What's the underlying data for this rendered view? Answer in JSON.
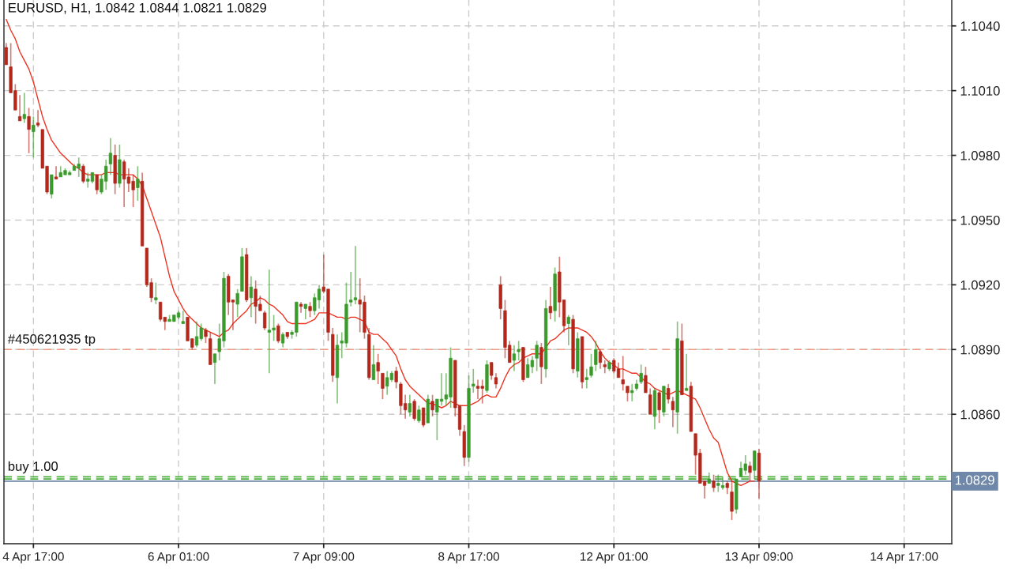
{
  "chart_data": {
    "type": "candlestick",
    "title": "EURUSD, H1, 1.0842 1.0844 1.0821 1.0829",
    "categories": [
      null,
      null,
      null,
      null,
      null,
      null,
      "4 Apr 17:00",
      null,
      null,
      null,
      null,
      null,
      null,
      null,
      null,
      null,
      null,
      null,
      null,
      null,
      null,
      null,
      null,
      null,
      null,
      null,
      null,
      null,
      null,
      null,
      null,
      null,
      null,
      null,
      null,
      null,
      null,
      null,
      "6 Apr 01:00",
      null,
      null,
      null,
      null,
      null,
      null,
      null,
      null,
      null,
      null,
      null,
      null,
      null,
      null,
      null,
      null,
      null,
      null,
      null,
      null,
      null,
      null,
      null,
      null,
      null,
      null,
      null,
      null,
      null,
      null,
      null,
      "7 Apr 09:00",
      null,
      null,
      null,
      null,
      null,
      null,
      null,
      null,
      null,
      null,
      null,
      null,
      null,
      null,
      null,
      null,
      null,
      null,
      null,
      null,
      null,
      null,
      null,
      null,
      null,
      null,
      null,
      null,
      null,
      null,
      null,
      "8 Apr 17:00",
      null,
      null,
      null,
      null,
      null,
      null,
      null,
      null,
      null,
      null,
      null,
      null,
      null,
      null,
      null,
      null,
      null,
      null,
      null,
      null,
      null,
      null,
      null,
      null,
      null,
      null,
      null,
      null,
      null,
      null,
      null,
      "12 Apr 01:00",
      null,
      null,
      null,
      null,
      null,
      null,
      null,
      null,
      null,
      null,
      null,
      null,
      null,
      null,
      null,
      null,
      null,
      null,
      null,
      null,
      null,
      null,
      null,
      null,
      null,
      null,
      null,
      null,
      null,
      null,
      null,
      "13 Apr 09:00",
      null,
      null,
      null,
      null,
      null,
      null,
      null,
      null,
      null,
      null,
      null,
      null,
      null,
      null,
      null,
      null,
      null,
      null,
      null,
      null,
      null,
      null,
      null,
      null,
      null,
      null,
      null,
      null,
      null,
      null,
      null,
      "14 Apr 17:00",
      null,
      null,
      null,
      null,
      null,
      null,
      null,
      null,
      null,
      null
    ],
    "ylim": [
      1.08,
      1.1052
    ],
    "yticks": [
      {
        "value": 1.086,
        "label": "1.0860"
      },
      {
        "value": 1.089,
        "label": "1.0890"
      },
      {
        "value": 1.092,
        "label": "1.0920"
      },
      {
        "value": 1.095,
        "label": "1.0950"
      },
      {
        "value": 1.098,
        "label": "1.0980"
      },
      {
        "value": 1.101,
        "label": "1.1010"
      },
      {
        "value": 1.104,
        "label": "1.1040"
      }
    ],
    "grid": true,
    "series": [
      {
        "type": "line",
        "color": "#ee3322",
        "values": [
          1.1043,
          1.1038,
          1.1034,
          1.1028,
          1.1024,
          1.102,
          1.1014,
          1.1006,
          1.0998,
          1.0992,
          1.0987,
          1.0984,
          1.0981,
          1.0979,
          1.0977,
          1.0975,
          1.0974,
          1.0972,
          1.0971,
          1.0971,
          1.0971,
          1.0971,
          1.0972,
          1.0972,
          1.0972,
          1.0971,
          1.0971,
          1.0971,
          1.0971,
          1.0969,
          1.0966,
          1.096,
          1.0954,
          1.0948,
          1.0942,
          1.0933,
          1.0924,
          1.0917,
          1.0913,
          1.0909,
          1.0906,
          1.0904,
          1.0902,
          1.09,
          1.0899,
          1.0898,
          1.0897,
          1.0896,
          1.0898,
          1.0899,
          1.0902,
          1.0904,
          1.0906,
          1.0908,
          1.0911,
          1.0912,
          1.0914,
          1.0913,
          1.0911,
          1.091,
          1.0908,
          1.0906,
          1.0903,
          1.0902,
          1.0902,
          1.0902,
          1.0902,
          1.0903,
          1.0904,
          1.0907,
          1.0907,
          1.0907,
          1.0906,
          1.0905,
          1.0905,
          1.0904,
          1.0905,
          1.0905,
          1.0904,
          1.0903,
          1.0898,
          1.0897,
          1.0897,
          1.0895,
          1.0893,
          1.089,
          1.0887,
          1.0881,
          1.0876,
          1.0873,
          1.0871,
          1.0869,
          1.0867,
          1.0865,
          1.0865,
          1.0864,
          1.0863,
          1.0864,
          1.0866,
          1.0865,
          1.0864,
          1.0864,
          1.0864,
          1.0865,
          1.0866,
          1.0868,
          1.0869,
          1.0868,
          1.0868,
          1.0872,
          1.0877,
          1.0881,
          1.0883,
          1.0884,
          1.0886,
          1.0887,
          1.0888,
          1.0888,
          1.0888,
          1.0891,
          1.0894,
          1.0895,
          1.0897,
          1.0899,
          1.09,
          1.09,
          1.09,
          1.0899,
          1.0898,
          1.0896,
          1.0893,
          1.0889,
          1.0886,
          1.0884,
          1.0883,
          1.0881,
          1.0881,
          1.088,
          1.0879,
          1.0879,
          1.0877,
          1.0875,
          1.0874,
          1.0872,
          1.0871,
          1.087,
          1.0869,
          1.087,
          1.0871,
          1.087,
          1.0869,
          1.0868,
          1.0867,
          1.0863,
          1.0858,
          1.0853,
          1.0849,
          1.0847,
          1.084,
          1.0833,
          1.0829,
          1.0828,
          1.0827,
          1.0828,
          1.0829,
          1.0829,
          null,
          null,
          null,
          null,
          null,
          null,
          null,
          null,
          null,
          null,
          null,
          null,
          null,
          null,
          null,
          null,
          null,
          null,
          null,
          null,
          null,
          null,
          null,
          null,
          null,
          null,
          null,
          null,
          null,
          null,
          null,
          null,
          null,
          null,
          null,
          null,
          null,
          null,
          null,
          null,
          null,
          null,
          null
        ]
      },
      {
        "ohlc": [
          [
            1.103,
            1.1032,
            1.1022,
            1.1022
          ],
          [
            1.1021,
            1.1032,
            1.1009,
            1.1009
          ],
          [
            1.101,
            1.1013,
            1.1001,
            1.1001
          ],
          [
            1.0998,
            1.1008,
            1.0996,
            1.0996
          ],
          [
            1.0997,
            1.1009,
            1.0995,
            1.0999
          ],
          [
            1.0998,
            1.1002,
            1.0981,
            1.0992
          ],
          [
            1.0991,
            1.0998,
            1.0979,
            1.0994
          ],
          [
            1.0995,
            1.1001,
            1.0993,
            1.0994
          ],
          [
            1.0992,
            1.0992,
            1.0974,
            1.0974
          ],
          [
            1.0975,
            1.0975,
            1.0962,
            1.0963
          ],
          [
            1.0962,
            1.0971,
            1.096,
            1.0971
          ],
          [
            1.097,
            1.0975,
            1.0969,
            1.0969
          ],
          [
            1.097,
            1.0975,
            1.097,
            1.0972
          ],
          [
            1.0971,
            1.0974,
            1.0971,
            1.0973
          ],
          [
            1.0971,
            1.0973,
            1.0971,
            1.0972
          ],
          [
            1.0973,
            1.0976,
            1.0973,
            1.0975
          ],
          [
            1.0974,
            1.0979,
            1.097,
            1.0976
          ],
          [
            1.0975,
            1.0976,
            1.0967,
            1.0968
          ],
          [
            1.0968,
            1.0972,
            1.0965,
            1.0969
          ],
          [
            1.0968,
            1.0972,
            1.0967,
            1.0972
          ],
          [
            1.0971,
            1.0971,
            1.0962,
            1.0964
          ],
          [
            1.0963,
            1.0971,
            1.0962,
            1.0969
          ],
          [
            1.0968,
            1.0978,
            1.0964,
            1.0975
          ],
          [
            1.0976,
            1.0988,
            1.0971,
            1.0981
          ],
          [
            1.098,
            1.0985,
            1.0962,
            1.0967
          ],
          [
            1.0967,
            1.0985,
            1.0965,
            1.0978
          ],
          [
            1.0977,
            1.0978,
            1.0956,
            1.0969
          ],
          [
            1.097,
            1.0974,
            1.0963,
            1.0967
          ],
          [
            1.0968,
            1.0971,
            1.0956,
            1.0964
          ],
          [
            1.0965,
            1.0975,
            1.0959,
            1.0969
          ],
          [
            1.0968,
            1.0972,
            1.0938,
            1.0938
          ],
          [
            1.0937,
            1.0937,
            1.0919,
            1.092
          ],
          [
            1.0921,
            1.0923,
            1.0912,
            1.0914
          ],
          [
            1.0913,
            1.0921,
            1.0911,
            1.0914
          ],
          [
            1.0912,
            1.0912,
            1.0903,
            1.0904
          ],
          [
            1.0905,
            1.0905,
            1.0899,
            1.0903
          ],
          [
            1.0903,
            1.0906,
            1.0903,
            1.0904
          ],
          [
            1.0903,
            1.0906,
            1.0903,
            1.0906
          ],
          [
            1.0905,
            1.0908,
            1.0904,
            1.0907
          ],
          [
            1.0902,
            1.0908,
            1.0902,
            1.0903
          ],
          [
            1.0905,
            1.0905,
            1.0894,
            1.0894
          ],
          [
            1.0895,
            1.0895,
            1.089,
            1.0891
          ],
          [
            1.0892,
            1.0903,
            1.0891,
            1.0896
          ],
          [
            1.0895,
            1.0902,
            1.0894,
            1.09
          ],
          [
            1.0899,
            1.09,
            1.0893,
            1.0896
          ],
          [
            1.0895,
            1.0898,
            1.0883,
            1.0883
          ],
          [
            1.0884,
            1.0888,
            1.0874,
            1.0888
          ],
          [
            1.0889,
            1.0902,
            1.0885,
            1.0895
          ],
          [
            1.0894,
            1.0926,
            1.0891,
            1.0923
          ],
          [
            1.0924,
            1.0925,
            1.0906,
            1.0912
          ],
          [
            1.0913,
            1.0913,
            1.0899,
            1.0912
          ],
          [
            1.0911,
            1.0918,
            1.0905,
            1.0916
          ],
          [
            1.0917,
            1.0937,
            1.0917,
            1.0933
          ],
          [
            1.0934,
            1.0937,
            1.0912,
            1.0913
          ],
          [
            1.0914,
            1.0924,
            1.0905,
            1.0919
          ],
          [
            1.0918,
            1.0922,
            1.0902,
            1.091
          ],
          [
            1.0911,
            1.0915,
            1.0908,
            1.0908
          ],
          [
            1.0907,
            1.0908,
            1.0899,
            1.09
          ],
          [
            1.0898,
            1.0927,
            1.0879,
            1.0899
          ],
          [
            1.0899,
            1.0906,
            1.0894,
            1.09
          ],
          [
            1.0901,
            1.0902,
            1.0893,
            1.0894
          ],
          [
            1.0893,
            1.0898,
            1.0891,
            1.0897
          ],
          [
            1.0898,
            1.0898,
            1.0895,
            1.0896
          ],
          [
            1.0897,
            1.0899,
            1.0895,
            1.0898
          ],
          [
            1.0898,
            1.0912,
            1.0896,
            1.0912
          ],
          [
            1.0911,
            1.0912,
            1.0907,
            1.091
          ],
          [
            1.0909,
            1.0911,
            1.0904,
            1.0911
          ],
          [
            1.091,
            1.0912,
            1.0905,
            1.0908
          ],
          [
            1.0908,
            1.0916,
            1.0906,
            1.0914
          ],
          [
            1.0913,
            1.092,
            1.0909,
            1.0918
          ],
          [
            1.0919,
            1.0934,
            1.0916,
            1.0917
          ],
          [
            1.0918,
            1.0918,
            1.0894,
            1.0898
          ],
          [
            1.0897,
            1.09,
            1.0875,
            1.0878
          ],
          [
            1.0877,
            1.0897,
            1.0865,
            1.0892
          ],
          [
            1.0893,
            1.0898,
            1.0886,
            1.0894
          ],
          [
            1.0893,
            1.0921,
            1.0891,
            1.0911
          ],
          [
            1.0912,
            1.0926,
            1.091,
            1.0913
          ],
          [
            1.0913,
            1.0938,
            1.0911,
            1.0914
          ],
          [
            1.0913,
            1.0923,
            1.0898,
            1.0911
          ],
          [
            1.0912,
            1.0915,
            1.0895,
            1.0898
          ],
          [
            1.0897,
            1.09,
            1.0876,
            1.0877
          ],
          [
            1.0876,
            1.0892,
            1.0876,
            1.0883
          ],
          [
            1.0884,
            1.0888,
            1.0874,
            1.088
          ],
          [
            1.0879,
            1.0879,
            1.0867,
            1.0872
          ],
          [
            1.0873,
            1.088,
            1.0869,
            1.0877
          ],
          [
            1.0876,
            1.088,
            1.0875,
            1.0879
          ],
          [
            1.088,
            1.0882,
            1.0872,
            1.0875
          ],
          [
            1.0874,
            1.0875,
            1.086,
            1.0864
          ],
          [
            1.0865,
            1.0869,
            1.0858,
            1.0862
          ],
          [
            1.0861,
            1.0869,
            1.0859,
            1.0865
          ],
          [
            1.0866,
            1.0867,
            1.0857,
            1.0858
          ],
          [
            1.0857,
            1.0864,
            1.0856,
            1.0862
          ],
          [
            1.0863,
            1.0863,
            1.0854,
            1.0855
          ],
          [
            1.0856,
            1.0869,
            1.0856,
            1.0867
          ],
          [
            1.0866,
            1.0869,
            1.0859,
            1.0862
          ],
          [
            1.0861,
            1.0867,
            1.0848,
            1.0867
          ],
          [
            1.0866,
            1.0879,
            1.0864,
            1.0867
          ],
          [
            1.0867,
            1.0879,
            1.0864,
            1.0869
          ],
          [
            1.0868,
            1.0891,
            1.0863,
            1.0886
          ],
          [
            1.0885,
            1.0885,
            1.0859,
            1.0863
          ],
          [
            1.0864,
            1.0864,
            1.085,
            1.0853
          ],
          [
            1.0852,
            1.0855,
            1.0836,
            1.084
          ],
          [
            1.084,
            1.0878,
            1.0838,
            1.0872
          ],
          [
            1.0873,
            1.0881,
            1.087,
            1.0874
          ],
          [
            1.0873,
            1.0876,
            1.0867,
            1.0872
          ],
          [
            1.0873,
            1.0876,
            1.0865,
            1.0872
          ],
          [
            1.0871,
            1.0885,
            1.087,
            1.0883
          ],
          [
            1.0884,
            1.0884,
            1.0876,
            1.0878
          ],
          [
            1.0877,
            1.0879,
            1.0872,
            1.0874
          ],
          [
            1.092,
            1.0924,
            1.0904,
            1.0909
          ],
          [
            1.0908,
            1.0913,
            1.0886,
            1.0891
          ],
          [
            1.0892,
            1.0894,
            1.0884,
            1.0884
          ],
          [
            1.0885,
            1.0892,
            1.088,
            1.0888
          ],
          [
            1.0889,
            1.0894,
            1.0885,
            1.089
          ],
          [
            1.0891,
            1.0891,
            1.0875,
            1.0876
          ],
          [
            1.0877,
            1.0886,
            1.0877,
            1.0883
          ],
          [
            1.0882,
            1.0887,
            1.0879,
            1.0885
          ],
          [
            1.0886,
            1.0894,
            1.088,
            1.0892
          ],
          [
            1.0891,
            1.0893,
            1.0874,
            1.0882
          ],
          [
            1.0881,
            1.0913,
            1.0877,
            1.0909
          ],
          [
            1.091,
            1.0919,
            1.0904,
            1.0907
          ],
          [
            1.0908,
            1.0928,
            1.0903,
            1.0925
          ],
          [
            1.0926,
            1.0933,
            1.0905,
            1.0912
          ],
          [
            1.0913,
            1.0913,
            1.0898,
            1.0901
          ],
          [
            1.0902,
            1.0906,
            1.0892,
            1.0905
          ],
          [
            1.0904,
            1.0906,
            1.0879,
            1.0881
          ],
          [
            1.088,
            1.0898,
            1.0877,
            1.0895
          ],
          [
            1.0896,
            1.0896,
            1.0872,
            1.0875
          ],
          [
            1.0876,
            1.0881,
            1.0872,
            1.0877
          ],
          [
            1.0878,
            1.0888,
            1.0877,
            1.0882
          ],
          [
            1.0883,
            1.0894,
            1.088,
            1.089
          ],
          [
            1.0889,
            1.089,
            1.0881,
            1.0884
          ],
          [
            1.0883,
            1.0885,
            1.0879,
            1.0882
          ],
          [
            1.0881,
            1.0885,
            1.088,
            1.0884
          ],
          [
            1.0885,
            1.0886,
            1.0879,
            1.088
          ],
          [
            1.0881,
            1.0884,
            1.0877,
            1.0877
          ],
          [
            1.0876,
            1.0887,
            1.0871,
            1.0874
          ],
          [
            1.0873,
            1.0873,
            1.0866,
            1.087
          ],
          [
            1.087,
            1.0874,
            1.0866,
            1.0871
          ],
          [
            1.0872,
            1.0876,
            1.0871,
            1.0874
          ],
          [
            1.0875,
            1.0883,
            1.0874,
            1.0879
          ],
          [
            1.0878,
            1.0882,
            1.087,
            1.087
          ],
          [
            1.0869,
            1.0872,
            1.086,
            1.086
          ],
          [
            1.0859,
            1.0872,
            1.0853,
            1.0871
          ],
          [
            1.087,
            1.0871,
            1.0856,
            1.0862
          ],
          [
            1.0861,
            1.0873,
            1.0859,
            1.0873
          ],
          [
            1.0872,
            1.0874,
            1.0865,
            1.0867
          ],
          [
            1.0866,
            1.0868,
            1.0854,
            1.0862
          ],
          [
            1.0861,
            1.0903,
            1.0851,
            1.0895
          ],
          [
            1.0894,
            1.0902,
            1.0869,
            1.0869
          ],
          [
            1.0871,
            1.0888,
            1.0871,
            1.0872
          ],
          [
            1.0873,
            1.0875,
            1.0852,
            1.0852
          ],
          [
            1.0851,
            1.0851,
            1.0832,
            1.0841
          ],
          [
            1.0842,
            1.0844,
            1.0828,
            1.0828
          ],
          [
            1.0829,
            1.0829,
            1.0821,
            1.0827
          ],
          [
            1.0828,
            1.0833,
            1.0828,
            1.083
          ],
          [
            1.0829,
            1.0832,
            1.0824,
            1.0826
          ],
          [
            1.0827,
            1.0832,
            1.0824,
            1.0828
          ],
          [
            1.0826,
            1.0831,
            1.0825,
            1.0827
          ],
          [
            1.0828,
            1.0829,
            1.0823,
            1.0826
          ],
          [
            1.0824,
            1.0829,
            1.0811,
            1.0815
          ],
          [
            1.0816,
            1.083,
            1.0814,
            1.083
          ],
          [
            1.0831,
            1.0838,
            1.0831,
            1.0835
          ],
          [
            1.0834,
            1.0841,
            1.0832,
            1.0837
          ],
          [
            1.0836,
            1.0838,
            1.0829,
            1.0833
          ],
          [
            1.0834,
            1.0843,
            1.083,
            1.0843
          ],
          [
            1.0842,
            1.0844,
            1.0821,
            1.0829
          ],
          null,
          null,
          null,
          null,
          null,
          null,
          null,
          null,
          null,
          null,
          null,
          null,
          null,
          null,
          null,
          null,
          null,
          null,
          null,
          null,
          null,
          null,
          null,
          null,
          null,
          null,
          null,
          null,
          null,
          null,
          null,
          null,
          null,
          null,
          null,
          null,
          null,
          null,
          null,
          null,
          null,
          null
        ],
        "colors": [
          "#b3281c",
          "#b3281c",
          "#b3281c",
          "#b3281c",
          "#3a9a2b",
          "#b3281c",
          "#3a9a2b",
          "#b3281c",
          "#b3281c",
          "#b3281c",
          "#3a9a2b",
          "#b3281c",
          "#3a9a2b",
          "#3a9a2b",
          "#3a9a2b",
          "#3a9a2b",
          "#3a9a2b",
          "#b3281c",
          "#3a9a2b",
          "#3a9a2b",
          "#b3281c",
          "#3a9a2b",
          "#3a9a2b",
          "#3a9a2b",
          "#b3281c",
          "#3a9a2b",
          "#b3281c",
          "#b3281c",
          "#b3281c",
          "#3a9a2b",
          "#b3281c",
          "#b3281c",
          "#b3281c",
          "#3a9a2b",
          "#b3281c",
          "#b3281c",
          "#3a9a2b",
          "#3a9a2b",
          "#3a9a2b",
          "#3a9a2b",
          "#b3281c",
          "#b3281c",
          "#3a9a2b",
          "#3a9a2b",
          "#b3281c",
          "#b3281c",
          "#3a9a2b",
          "#3a9a2b",
          "#3a9a2b",
          "#b3281c",
          "#b3281c",
          "#3a9a2b",
          "#3a9a2b",
          "#b3281c",
          "#3a9a2b",
          "#b3281c",
          "#b3281c",
          "#b3281c",
          "#3a9a2b",
          "#3a9a2b",
          "#b3281c",
          "#3a9a2b",
          "#b3281c",
          "#3a9a2b",
          "#3a9a2b",
          "#b3281c",
          "#3a9a2b",
          "#b3281c",
          "#3a9a2b",
          "#3a9a2b",
          "#b3281c",
          "#b3281c",
          "#b3281c",
          "#3a9a2b",
          "#3a9a2b",
          "#3a9a2b",
          "#3a9a2b",
          "#3a9a2b",
          "#b3281c",
          "#b3281c",
          "#b3281c",
          "#3a9a2b",
          "#b3281c",
          "#b3281c",
          "#3a9a2b",
          "#3a9a2b",
          "#b3281c",
          "#b3281c",
          "#b3281c",
          "#3a9a2b",
          "#b3281c",
          "#3a9a2b",
          "#b3281c",
          "#3a9a2b",
          "#b3281c",
          "#3a9a2b",
          "#3a9a2b",
          "#3a9a2b",
          "#3a9a2b",
          "#b3281c",
          "#b3281c",
          "#b3281c",
          "#3a9a2b",
          "#3a9a2b",
          "#b3281c",
          "#b3281c",
          "#3a9a2b",
          "#b3281c",
          "#b3281c",
          "#b3281c",
          "#b3281c",
          "#b3281c",
          "#3a9a2b",
          "#3a9a2b",
          "#b3281c",
          "#3a9a2b",
          "#3a9a2b",
          "#3a9a2b",
          "#b3281c",
          "#3a9a2b",
          "#b3281c",
          "#3a9a2b",
          "#b3281c",
          "#b3281c",
          "#3a9a2b",
          "#b3281c",
          "#3a9a2b",
          "#b3281c",
          "#3a9a2b",
          "#3a9a2b",
          "#3a9a2b",
          "#b3281c",
          "#b3281c",
          "#3a9a2b",
          "#b3281c",
          "#b3281c",
          "#b3281c",
          "#b3281c",
          "#3a9a2b",
          "#3a9a2b",
          "#3a9a2b",
          "#b3281c",
          "#b3281c",
          "#3a9a2b",
          "#b3281c",
          "#3a9a2b",
          "#b3281c",
          "#b3281c",
          "#3a9a2b",
          "#b3281c",
          "#3a9a2b",
          "#b3281c",
          "#b3281c",
          "#b3281c",
          "#b3281c",
          "#3a9a2b",
          "#b3281c",
          "#3a9a2b",
          "#3a9a2b",
          "#b3281c",
          "#b3281c",
          "#3a9a2b",
          "#3a9a2b",
          "#3a9a2b",
          "#b3281c",
          "#3a9a2b",
          "#b3281c",
          null,
          null,
          null,
          null,
          null,
          null,
          null,
          null,
          null,
          null,
          null,
          null,
          null,
          null,
          null,
          null,
          null,
          null,
          null,
          null,
          null,
          null,
          null,
          null,
          null,
          null,
          null,
          null,
          null,
          null,
          null,
          null,
          null,
          null,
          null,
          null,
          null,
          null,
          null,
          null,
          null,
          null
        ]
      }
    ],
    "ref_lines": [
      {
        "axis": "y",
        "value": 1.089,
        "label": "#450621935 tp",
        "color": "#f09a84",
        "line_style": "dashed"
      },
      {
        "axis": "y",
        "value": 1.0831,
        "label": "buy 1.00",
        "color": "#4caf3c",
        "line_style": "dashed"
      },
      {
        "axis": "y",
        "value": 1.083,
        "label": null,
        "color": "#4caf3c",
        "line_style": "dashed"
      },
      {
        "axis": "y",
        "value": 1.0829,
        "label": "1.0829",
        "color": "#6f87a8",
        "line_style": "solid"
      }
    ]
  }
}
